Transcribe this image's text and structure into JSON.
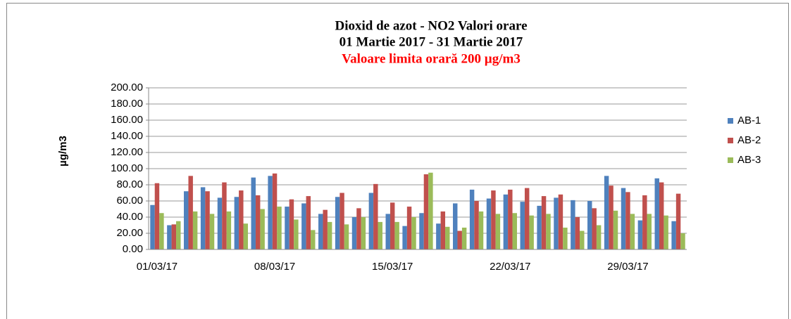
{
  "chart_data": {
    "type": "bar",
    "title": [
      "Dioxid de azot  - NO2  Valori orare",
      "01 Martie 2017 - 31 Martie 2017"
    ],
    "subtitle": "Valoare limita orară  200 µg/m3",
    "y_label": "µg/m3",
    "categories": [
      "01/03/17",
      null,
      null,
      null,
      null,
      null,
      null,
      "08/03/17",
      null,
      null,
      null,
      null,
      null,
      null,
      "15/03/17",
      null,
      null,
      null,
      null,
      null,
      null,
      "22/03/17",
      null,
      null,
      null,
      null,
      null,
      null,
      "29/03/17",
      null,
      null,
      null
    ],
    "series": [
      {
        "name": "AB-1",
        "color": "#4f81bd",
        "values": [
          55,
          30,
          72,
          77,
          64,
          65,
          89,
          91,
          53,
          57,
          44,
          65,
          40,
          70,
          44,
          29,
          45,
          32,
          57,
          74,
          63,
          68,
          59,
          54,
          64,
          61,
          60,
          91,
          76,
          36,
          88,
          35
        ]
      },
      {
        "name": "AB-2",
        "color": "#c0504d",
        "values": [
          82,
          31,
          91,
          72,
          83,
          73,
          67,
          94,
          62,
          66,
          49,
          70,
          51,
          81,
          58,
          53,
          93,
          47,
          23,
          60,
          73,
          74,
          76,
          66,
          68,
          40,
          51,
          79,
          71,
          67,
          83,
          69
        ]
      },
      {
        "name": "AB-3",
        "color": "#9bbb59",
        "values": [
          45,
          35,
          47,
          44,
          47,
          32,
          50,
          53,
          37,
          24,
          34,
          31,
          40,
          34,
          34,
          40,
          95,
          28,
          27,
          47,
          44,
          45,
          42,
          44,
          27,
          23,
          30,
          48,
          44,
          44,
          42,
          20
        ]
      }
    ],
    "ylim": [
      0,
      200
    ],
    "yticks": [
      {
        "value": 0,
        "label": "0.00"
      },
      {
        "value": 20,
        "label": "20.00"
      },
      {
        "value": 40,
        "label": "40.00"
      },
      {
        "value": 60,
        "label": "60.00"
      },
      {
        "value": 80,
        "label": "80.00"
      },
      {
        "value": 100,
        "label": "100.00"
      },
      {
        "value": 120,
        "label": "120.00"
      },
      {
        "value": 140,
        "label": "140.00"
      },
      {
        "value": 160,
        "label": "160.00"
      },
      {
        "value": 180,
        "label": "180.00"
      },
      {
        "value": 200,
        "label": "200.00"
      }
    ],
    "grid": true,
    "legend": "right"
  }
}
